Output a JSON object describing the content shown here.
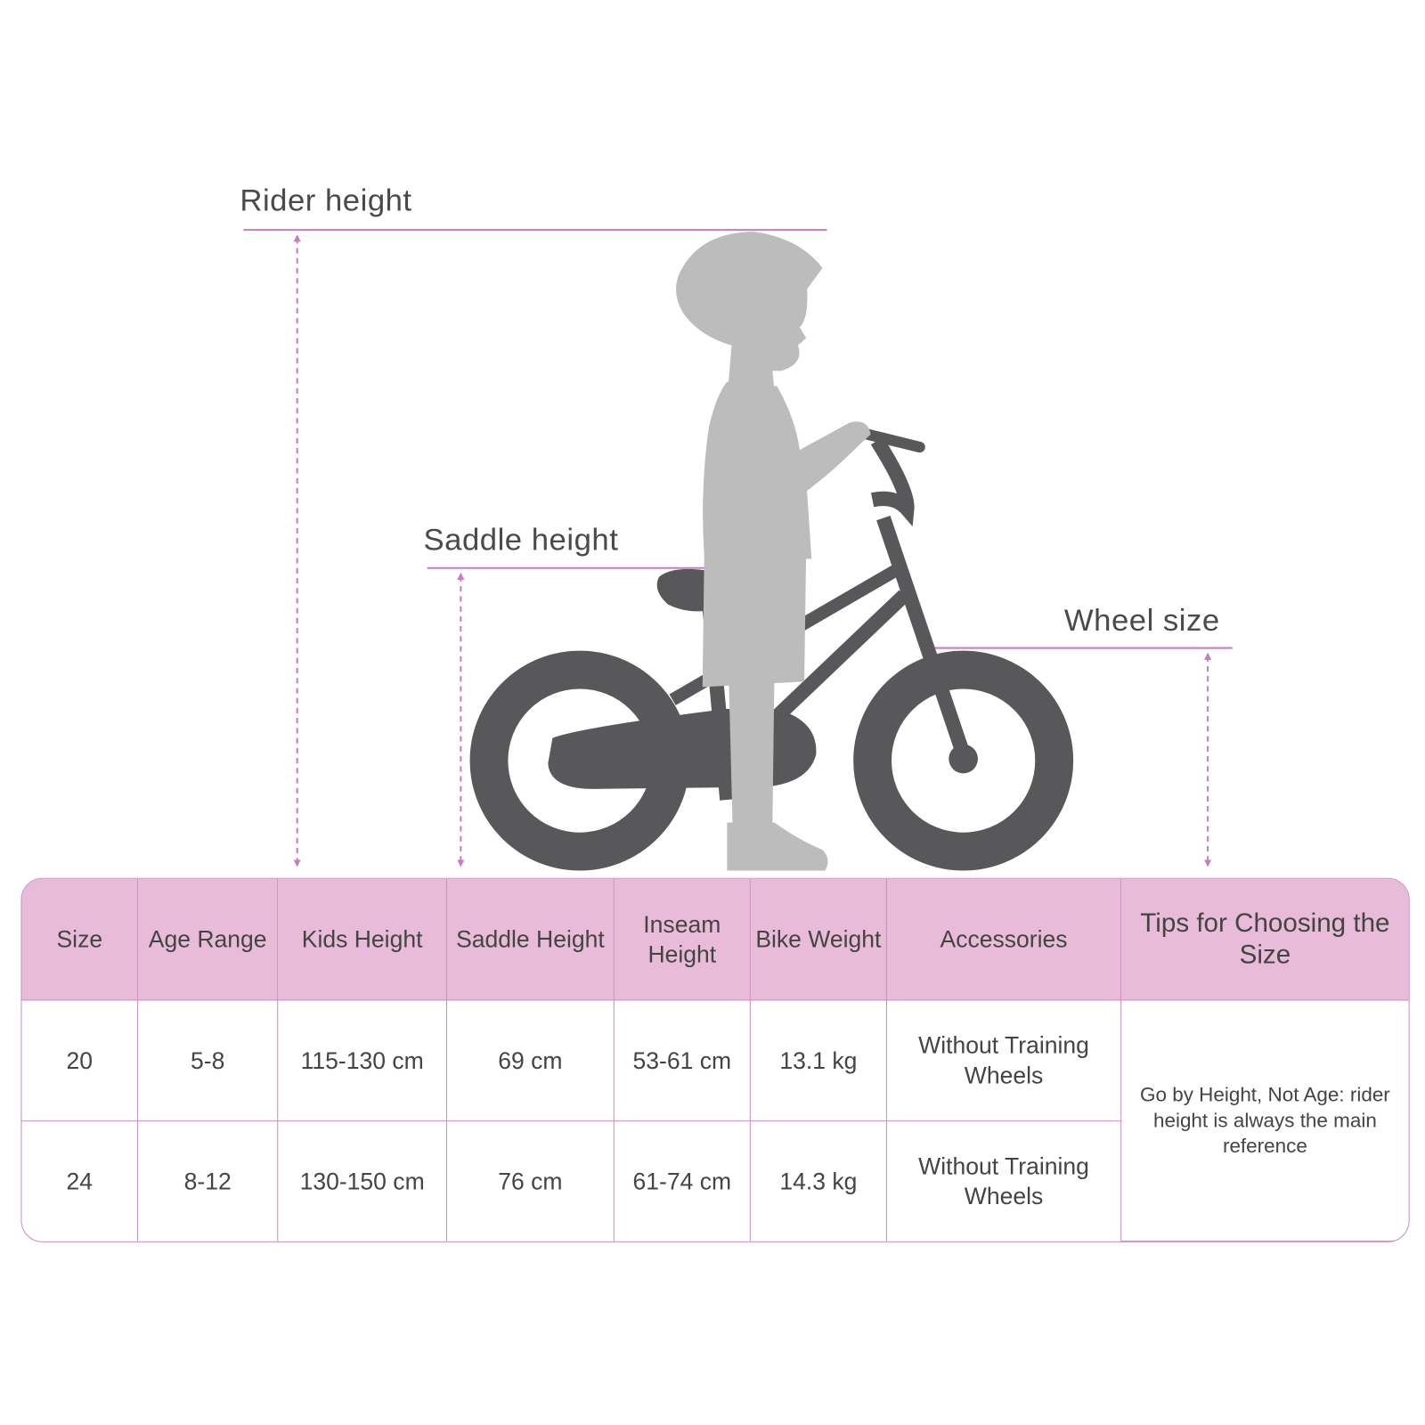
{
  "labels": {
    "rider_height": "Rider height",
    "saddle_height": "Saddle height",
    "wheel_size": "Wheel size"
  },
  "colors": {
    "accent": "#c87dbd",
    "header_bg": "#e8bcd8",
    "bike": "#58585a",
    "child": "#bcbcbc",
    "text": "#444444"
  },
  "table": {
    "headers": [
      "Size",
      "Age Range",
      "Kids Height",
      "Saddle Height",
      "Inseam Height",
      "Bike Weight",
      "Accessories",
      "Tips for Choosing the Size"
    ],
    "rows": [
      [
        "20",
        "5-8",
        "115-130 cm",
        "69 cm",
        "53-61 cm",
        "13.1 kg",
        "Without Training Wheels"
      ],
      [
        "24",
        "8-12",
        "130-150 cm",
        "76 cm",
        "61-74 cm",
        "14.3 kg",
        "Without Training Wheels"
      ]
    ],
    "tip": "Go by Height, Not Age: rider height is always the main reference"
  }
}
